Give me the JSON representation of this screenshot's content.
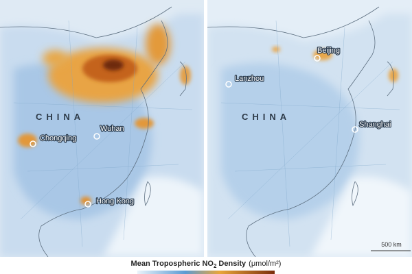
{
  "panels": [
    {
      "labels": [
        "CHINA",
        "Chongqing",
        "Wuhan",
        "Hong Kong"
      ]
    },
    {
      "labels": [
        "Lanzhou",
        "Beijing",
        "CHINA",
        "Shanghai"
      ],
      "scale_bar": "500 km"
    }
  ],
  "legend": {
    "title_prefix": "Mean Tropospheric NO",
    "title_subscript": "2",
    "title_suffix": "Density",
    "unit": "(μmol/m²)"
  }
}
